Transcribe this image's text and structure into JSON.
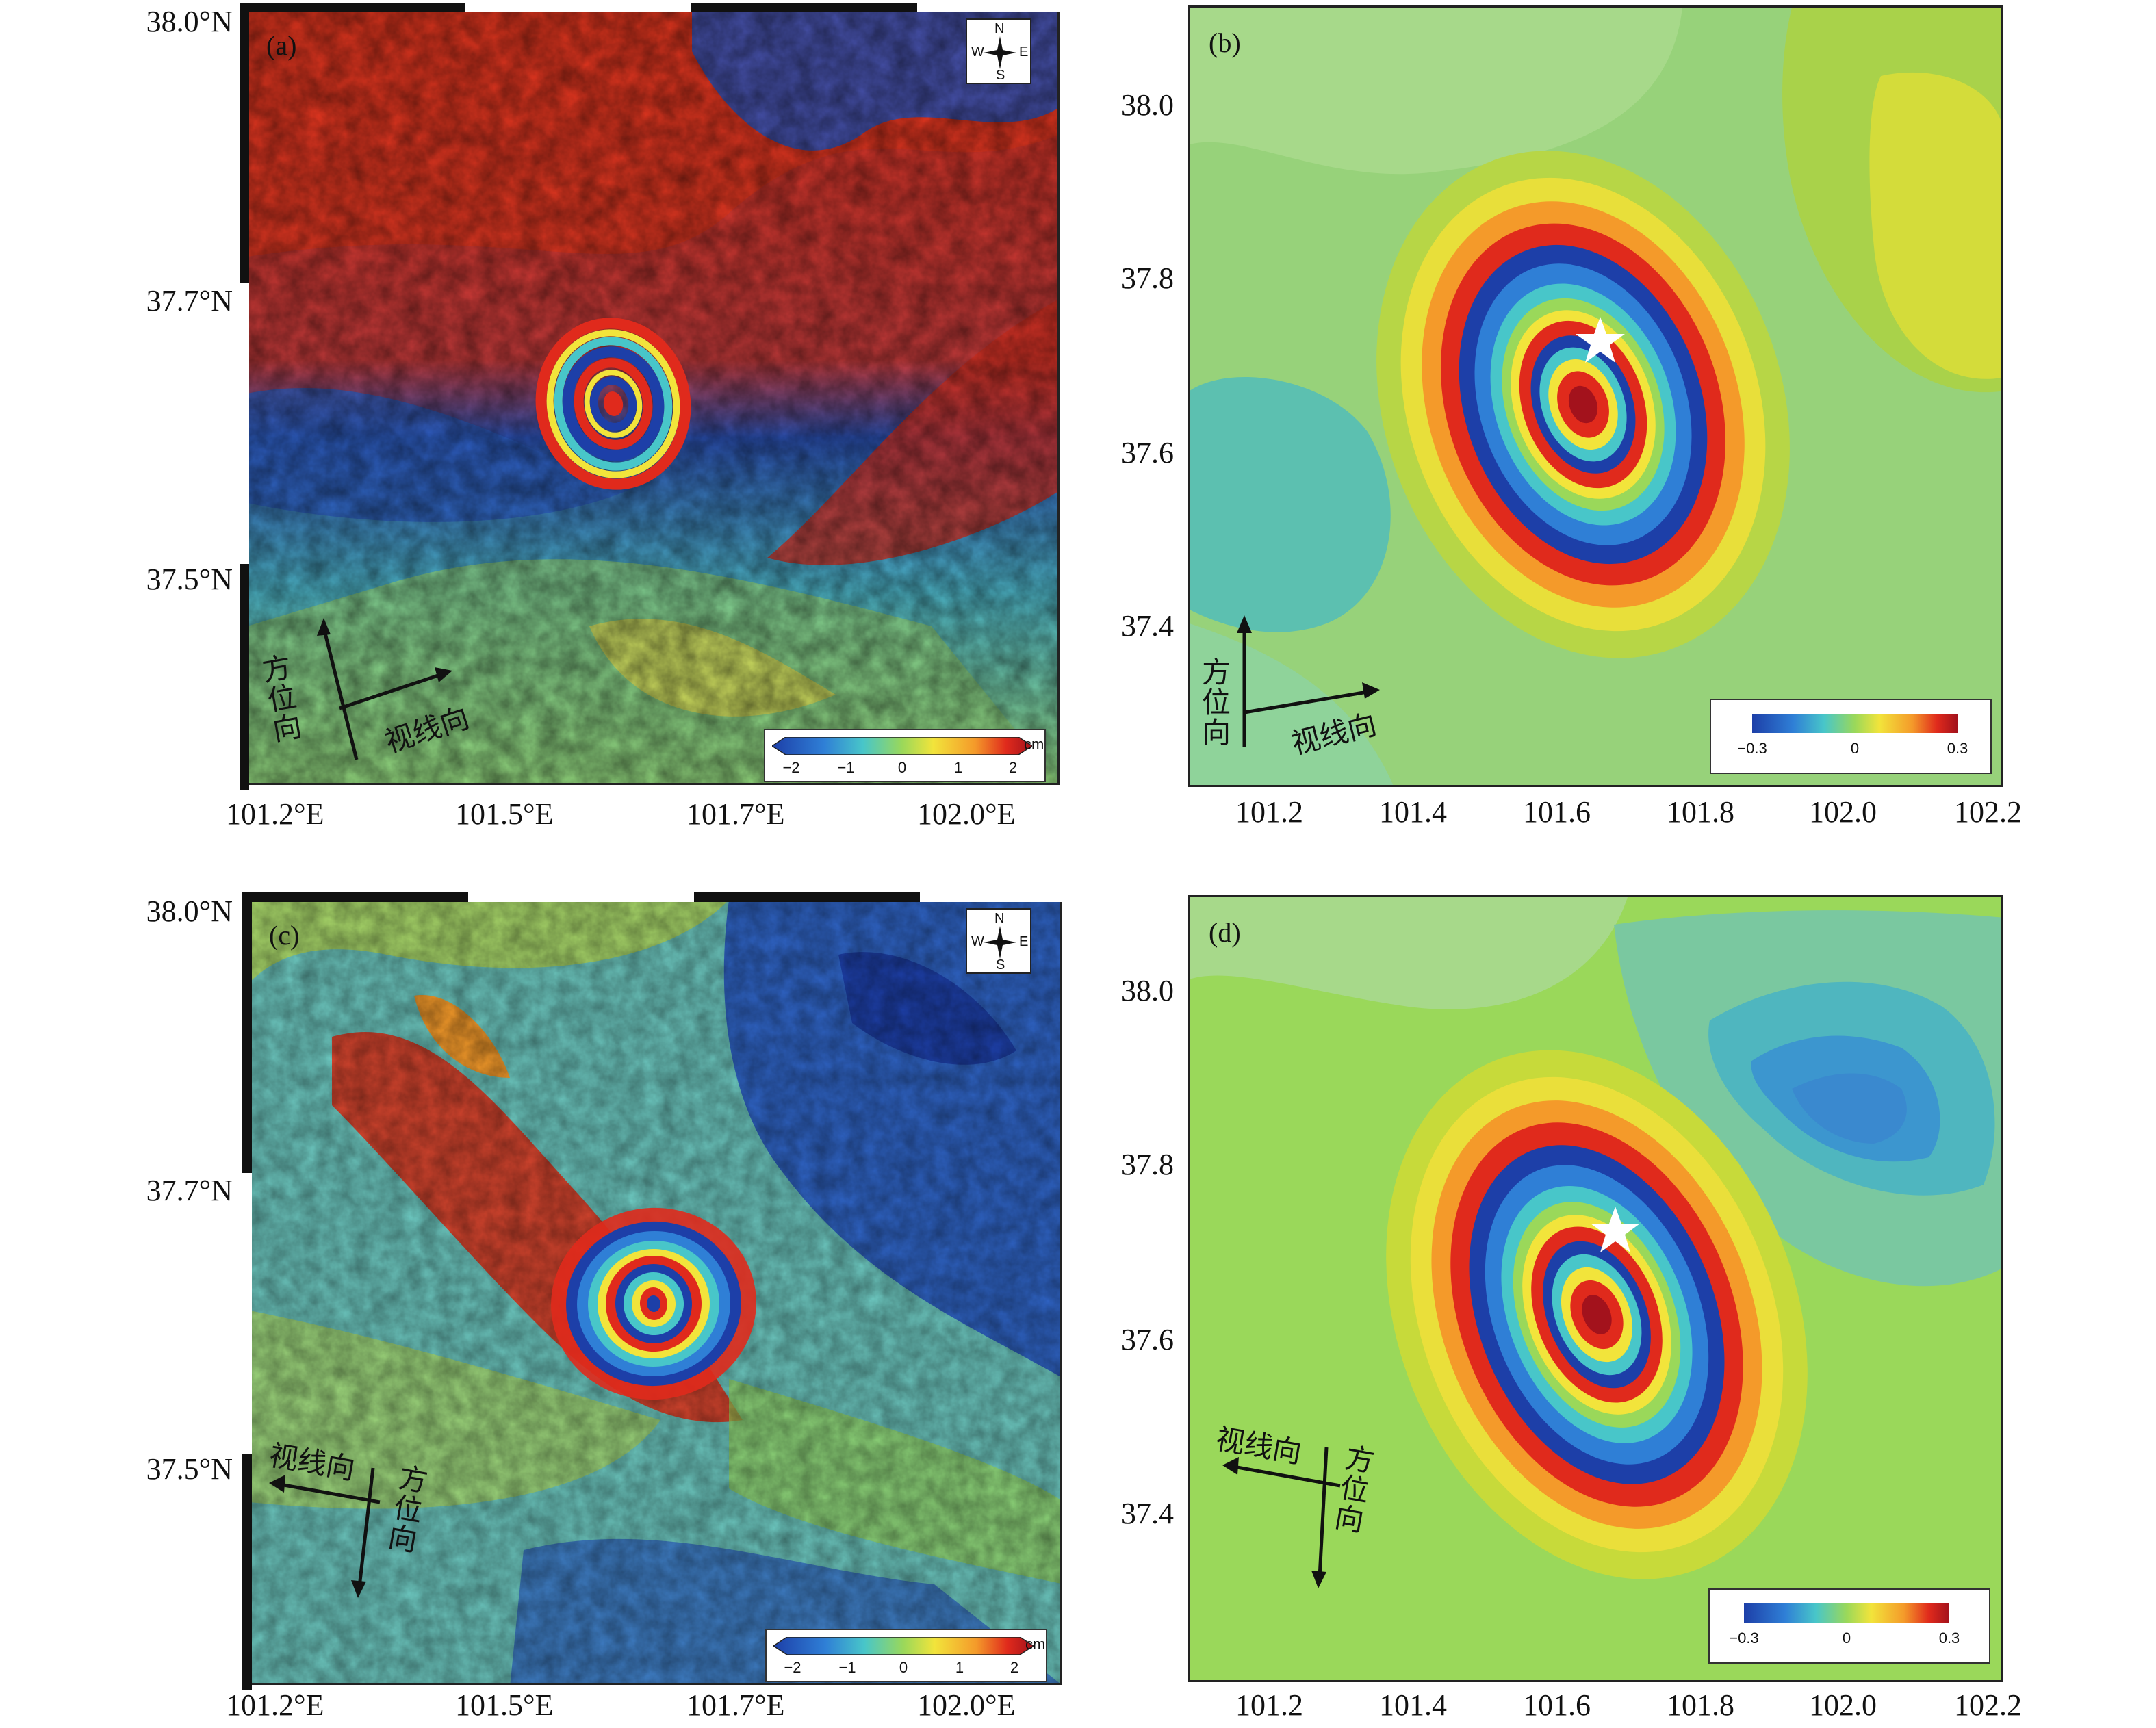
{
  "panels": [
    {
      "id": "a",
      "label": "(a)",
      "type": "interferogram",
      "yticks": [
        "38.0°N",
        "37.7°N",
        "37.5°N"
      ],
      "xticks": [
        "101.2°E",
        "101.5°E",
        "101.7°E",
        "102.0°E"
      ],
      "compass": {
        "n": "N",
        "s": "S",
        "e": "E",
        "w": "W"
      },
      "colorbar": {
        "ticks": [
          "−2",
          "−1",
          "0",
          "1",
          "2"
        ],
        "unit": "cm"
      },
      "azimuth_label": "方位向",
      "los_label": "视线向"
    },
    {
      "id": "b",
      "label": "(b)",
      "type": "model",
      "yticks": [
        "38.0",
        "37.8",
        "37.6",
        "37.4"
      ],
      "xticks": [
        "101.2",
        "101.4",
        "101.6",
        "101.8",
        "102.0",
        "102.2"
      ],
      "colorbar": {
        "ticks": [
          "−0.3",
          "0",
          "0.3"
        ]
      },
      "azimuth_label": "方位向",
      "los_label": "视线向",
      "epicenter_icon": "star-icon"
    },
    {
      "id": "c",
      "label": "(c)",
      "type": "interferogram",
      "yticks": [
        "38.0°N",
        "37.7°N",
        "37.5°N"
      ],
      "xticks": [
        "101.2°E",
        "101.5°E",
        "101.7°E",
        "102.0°E"
      ],
      "compass": {
        "n": "N",
        "s": "S",
        "e": "E",
        "w": "W"
      },
      "colorbar": {
        "ticks": [
          "−2",
          "−1",
          "0",
          "1",
          "2"
        ],
        "unit": "cm"
      },
      "azimuth_label": "方位向",
      "los_label": "视线向"
    },
    {
      "id": "d",
      "label": "(d)",
      "type": "model",
      "yticks": [
        "38.0",
        "37.8",
        "37.6",
        "37.4"
      ],
      "xticks": [
        "101.2",
        "101.4",
        "101.6",
        "101.8",
        "102.0",
        "102.2"
      ],
      "colorbar": {
        "ticks": [
          "−0.3",
          "0",
          "0.3"
        ]
      },
      "azimuth_label": "方位向",
      "los_label": "视线向",
      "epicenter_icon": "star-icon"
    }
  ],
  "colors": {
    "jet_ramp": [
      "#1d3fa8",
      "#2f7fd6",
      "#48c6c9",
      "#9ad85a",
      "#f2e43b",
      "#f49a2a",
      "#e02a1c",
      "#a3121c"
    ],
    "model_bg": "#97d27a",
    "epicenter": "#ffffff"
  }
}
